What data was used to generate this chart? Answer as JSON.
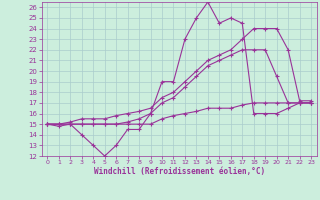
{
  "xlabel": "Windchill (Refroidissement éolien,°C)",
  "xlim": [
    -0.5,
    23.5
  ],
  "ylim": [
    12,
    26.5
  ],
  "xticks": [
    0,
    1,
    2,
    3,
    4,
    5,
    6,
    7,
    8,
    9,
    10,
    11,
    12,
    13,
    14,
    15,
    16,
    17,
    18,
    19,
    20,
    21,
    22,
    23
  ],
  "yticks": [
    12,
    13,
    14,
    15,
    16,
    17,
    18,
    19,
    20,
    21,
    22,
    23,
    24,
    25,
    26
  ],
  "bg_color": "#cceedd",
  "grid_color": "#aacccc",
  "line_color": "#993399",
  "lines": [
    {
      "x": [
        0,
        1,
        2,
        3,
        4,
        5,
        6,
        7,
        8,
        9,
        10,
        11,
        12,
        13,
        14,
        15,
        16,
        17,
        18,
        19,
        20,
        21,
        22,
        23
      ],
      "y": [
        15,
        14.8,
        15,
        14,
        13,
        12,
        13,
        14.5,
        14.5,
        16,
        19,
        19,
        23,
        25,
        26.5,
        24.5,
        25,
        24.5,
        16,
        16,
        16,
        16.5,
        17,
        17
      ]
    },
    {
      "x": [
        0,
        1,
        2,
        3,
        4,
        5,
        6,
        7,
        8,
        9,
        10,
        11,
        12,
        13,
        14,
        15,
        16,
        17,
        18,
        19,
        20,
        21,
        22,
        23
      ],
      "y": [
        15,
        15,
        15,
        15,
        15,
        15,
        15,
        15.2,
        15.5,
        16,
        17,
        17.5,
        18.5,
        19.5,
        20.5,
        21,
        21.5,
        22,
        22,
        22,
        19.5,
        17,
        17,
        17
      ]
    },
    {
      "x": [
        0,
        1,
        2,
        3,
        4,
        5,
        6,
        7,
        8,
        9,
        10,
        11,
        12,
        13,
        14,
        15,
        16,
        17,
        18,
        19,
        20,
        21,
        22,
        23
      ],
      "y": [
        15,
        15,
        15.2,
        15.5,
        15.5,
        15.5,
        15.8,
        16,
        16.2,
        16.5,
        17.5,
        18,
        19,
        20,
        21,
        21.5,
        22,
        23,
        24,
        24,
        24,
        22,
        17.2,
        17.2
      ]
    },
    {
      "x": [
        0,
        1,
        2,
        3,
        4,
        5,
        6,
        7,
        8,
        9,
        10,
        11,
        12,
        13,
        14,
        15,
        16,
        17,
        18,
        19,
        20,
        21,
        22,
        23
      ],
      "y": [
        15,
        15,
        15,
        15,
        15,
        15,
        15,
        15,
        15,
        15,
        15.5,
        15.8,
        16,
        16.2,
        16.5,
        16.5,
        16.5,
        16.8,
        17,
        17,
        17,
        17,
        17,
        17
      ]
    }
  ]
}
